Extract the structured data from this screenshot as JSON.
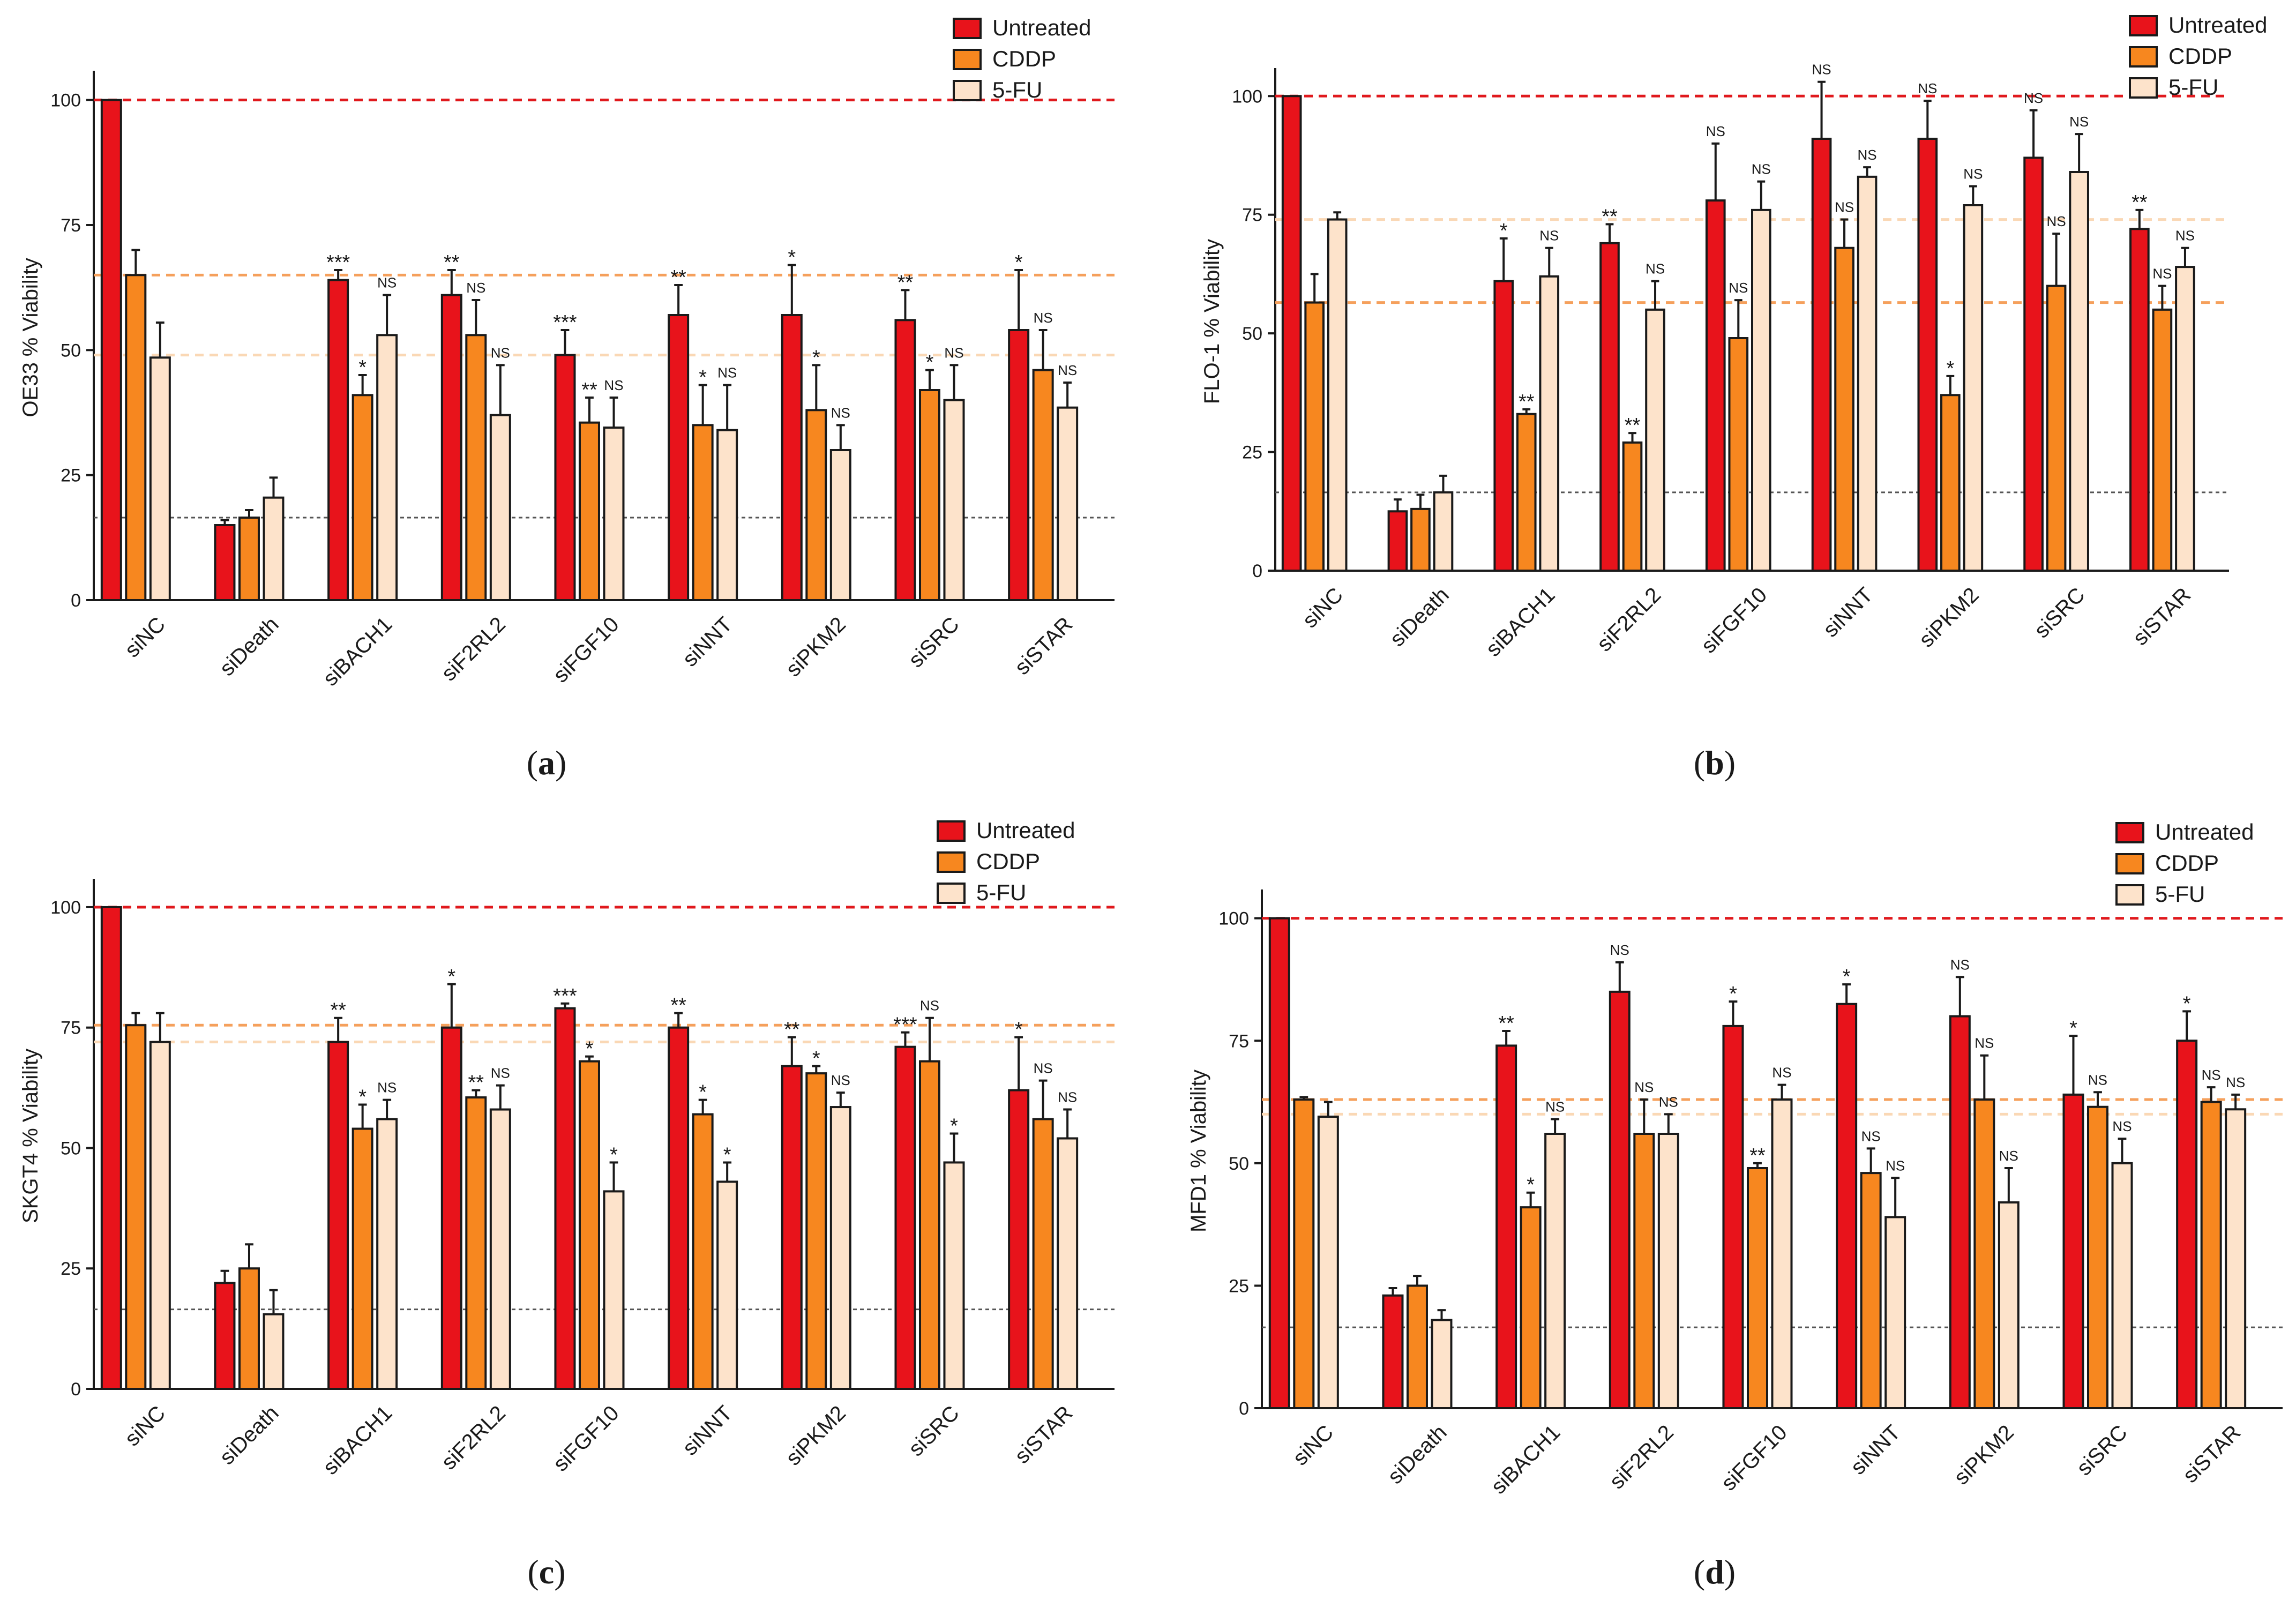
{
  "figure": {
    "categories": [
      "siNC",
      "siDeath",
      "siBACH1",
      "siF2RL2",
      "siFGF10",
      "siNNT",
      "siPKM2",
      "siSRC",
      "siSTAR"
    ],
    "series_names": [
      "Untreated",
      "CDDP",
      "5-FU"
    ],
    "colors": {
      "Untreated": "#e8131b",
      "CDDP": "#f7871f",
      "5-FU": "#fde3cb",
      "outline": "#1a1a1a",
      "ref_red": "#e0191d",
      "ref_orange": "#f5a05c",
      "ref_peach": "#fad8b5",
      "ref_grey": "#555555"
    },
    "yticks": [
      0,
      25,
      50,
      75,
      100
    ]
  },
  "chart_data": [
    {
      "type": "bar",
      "panel": "a",
      "caption": "(a)",
      "ylabel": "OE33 % Viability",
      "ylim": [
        0,
        105
      ],
      "categories": [
        "siNC",
        "siDeath",
        "siBACH1",
        "siF2RL2",
        "siFGF10",
        "siNNT",
        "siPKM2",
        "siSRC",
        "siSTAR"
      ],
      "legend": [
        "Untreated",
        "CDDP",
        "5-FU"
      ],
      "reference_lines": {
        "untreated": 100,
        "cddp": 65,
        "fu": 49,
        "death": 16.5
      },
      "series": [
        {
          "name": "Untreated",
          "values": [
            100,
            15,
            64,
            61,
            49,
            57,
            57,
            56,
            54
          ],
          "errors": [
            0,
            1,
            2,
            5,
            5,
            6,
            10,
            6,
            12
          ],
          "sig": [
            "",
            "",
            "***",
            "**",
            "***",
            "**",
            "*",
            "**",
            "*"
          ]
        },
        {
          "name": "CDDP",
          "values": [
            65,
            16.5,
            41,
            53,
            35.5,
            35,
            38,
            42,
            46
          ],
          "errors": [
            5,
            1.5,
            4,
            7,
            5,
            8,
            9,
            4,
            8
          ],
          "sig": [
            "",
            "",
            "*",
            "NS",
            "**",
            "*",
            "*",
            "*",
            "NS"
          ]
        },
        {
          "name": "5-FU",
          "values": [
            48.5,
            20.5,
            53,
            37,
            34.5,
            34,
            30,
            40,
            38.5
          ],
          "errors": [
            7,
            4,
            8,
            10,
            6,
            9,
            5,
            7,
            5
          ],
          "sig": [
            "",
            "",
            "NS",
            "NS",
            "NS",
            "NS",
            "NS",
            "NS",
            "NS"
          ]
        }
      ]
    },
    {
      "type": "bar",
      "panel": "b",
      "caption": "(b)",
      "ylabel": "FLO-1 % Viability",
      "ylim": [
        0,
        105
      ],
      "categories": [
        "siNC",
        "siDeath",
        "siBACH1",
        "siF2RL2",
        "siFGF10",
        "siNNT",
        "siPKM2",
        "siSRC",
        "siSTAR"
      ],
      "legend": [
        "Untreated",
        "CDDP",
        "5-FU"
      ],
      "reference_lines": {
        "untreated": 100,
        "cddp": 56.5,
        "fu": 74,
        "death": 16.5
      },
      "series": [
        {
          "name": "Untreated",
          "values": [
            100,
            12.5,
            61,
            69,
            78,
            91,
            91,
            87,
            72
          ],
          "errors": [
            0,
            2.5,
            9,
            4,
            12,
            12,
            8,
            10,
            4
          ],
          "sig": [
            "",
            "",
            "*",
            "**",
            "NS",
            "NS",
            "NS",
            "NS",
            "**"
          ]
        },
        {
          "name": "CDDP",
          "values": [
            56.5,
            13,
            33,
            27,
            49,
            68,
            37,
            60,
            55
          ],
          "errors": [
            6,
            3,
            1,
            2,
            8,
            6,
            4,
            11,
            5
          ],
          "sig": [
            "",
            "",
            "**",
            "**",
            "NS",
            "NS",
            "*",
            "NS",
            "NS"
          ]
        },
        {
          "name": "5-FU",
          "values": [
            74,
            16.5,
            62,
            55,
            76,
            83,
            77,
            84,
            64
          ],
          "errors": [
            1.5,
            3.5,
            6,
            6,
            6,
            2,
            4,
            8,
            4
          ],
          "sig": [
            "",
            "",
            "NS",
            "NS",
            "NS",
            "NS",
            "NS",
            "NS",
            "NS"
          ]
        }
      ]
    },
    {
      "type": "bar",
      "panel": "c",
      "caption": "(c)",
      "ylabel": "SKGT4 % Viability",
      "ylim": [
        0,
        105
      ],
      "categories": [
        "siNC",
        "siDeath",
        "siBACH1",
        "siF2RL2",
        "siFGF10",
        "siNNT",
        "siPKM2",
        "siSRC",
        "siSTAR"
      ],
      "legend": [
        "Untreated",
        "CDDP",
        "5-FU"
      ],
      "reference_lines": {
        "untreated": 100,
        "cddp": 75.5,
        "fu": 72,
        "death": 16.5
      },
      "series": [
        {
          "name": "Untreated",
          "values": [
            100,
            22,
            72,
            75,
            79,
            75,
            67,
            71,
            62
          ],
          "errors": [
            0,
            2.5,
            5,
            9,
            1,
            3,
            6,
            3,
            11
          ],
          "sig": [
            "",
            "",
            "**",
            "*",
            "***",
            "**",
            "**",
            "***",
            "*"
          ]
        },
        {
          "name": "CDDP",
          "values": [
            75.5,
            25,
            54,
            60.5,
            68,
            57,
            65.5,
            68,
            56
          ],
          "errors": [
            2.5,
            5,
            5,
            1.5,
            1,
            3,
            1.5,
            9,
            8
          ],
          "sig": [
            "",
            "",
            "*",
            "**",
            "*",
            "*",
            "*",
            "NS",
            "NS"
          ]
        },
        {
          "name": "5-FU",
          "values": [
            72,
            15.5,
            56,
            58,
            41,
            43,
            58.5,
            47,
            52
          ],
          "errors": [
            6,
            5,
            4,
            5,
            6,
            4,
            3,
            6,
            6
          ],
          "sig": [
            "",
            "",
            "NS",
            "NS",
            "*",
            "*",
            "NS",
            "*",
            "NS"
          ]
        }
      ]
    },
    {
      "type": "bar",
      "panel": "d",
      "caption": "(d)",
      "ylabel": "MFD1 % Viability",
      "ylim": [
        0,
        105
      ],
      "categories": [
        "siNC",
        "siDeath",
        "siBACH1",
        "siF2RL2",
        "siFGF10",
        "siNNT",
        "siPKM2",
        "siSRC",
        "siSTAR"
      ],
      "legend": [
        "Untreated",
        "CDDP",
        "5-FU"
      ],
      "reference_lines": {
        "untreated": 100,
        "cddp": 63,
        "fu": 60,
        "death": 16.5
      },
      "series": [
        {
          "name": "Untreated",
          "values": [
            100,
            23,
            74,
            85,
            78,
            82.5,
            80,
            64,
            75
          ],
          "errors": [
            0,
            1.5,
            3,
            6,
            5,
            4,
            8,
            12,
            6
          ],
          "sig": [
            "",
            "",
            "**",
            "NS",
            "*",
            "*",
            "NS",
            "*",
            "*"
          ]
        },
        {
          "name": "CDDP",
          "values": [
            63,
            25,
            41,
            56,
            49,
            48,
            63,
            61.5,
            62.5
          ],
          "errors": [
            0.5,
            2,
            3,
            7,
            1,
            5,
            9,
            3,
            3
          ],
          "sig": [
            "",
            "",
            "*",
            "NS",
            "**",
            "NS",
            "NS",
            "NS",
            "NS"
          ]
        },
        {
          "name": "5-FU",
          "values": [
            59.5,
            18,
            56,
            56,
            63,
            39,
            42,
            50,
            61
          ],
          "errors": [
            3,
            2,
            3,
            4,
            3,
            8,
            7,
            5,
            3
          ],
          "sig": [
            "",
            "",
            "NS",
            "NS",
            "NS",
            "NS",
            "NS",
            "NS",
            "NS"
          ]
        }
      ]
    }
  ]
}
